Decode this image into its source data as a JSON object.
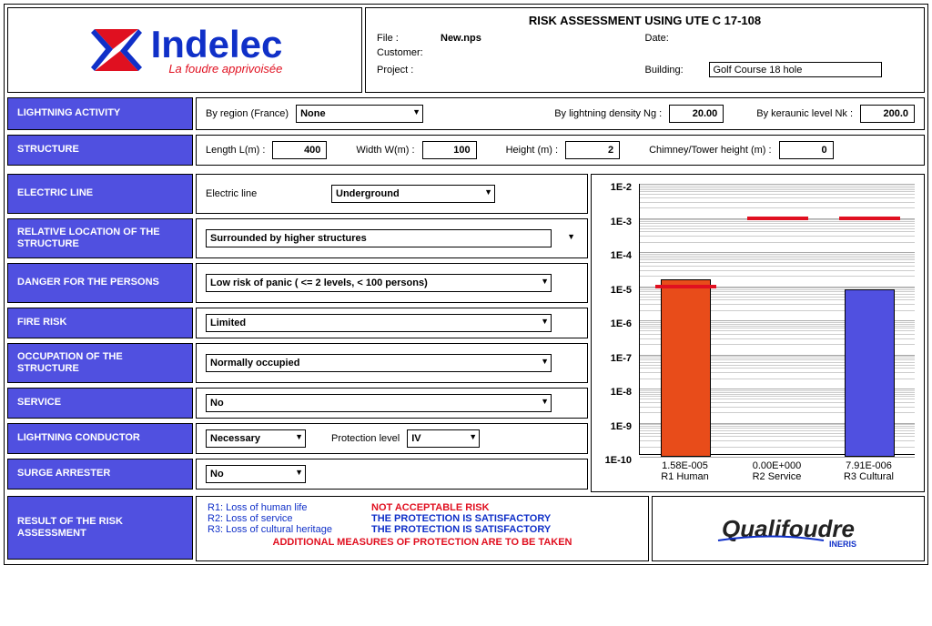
{
  "header": {
    "title": "RISK ASSESSMENT USING UTE C 17-108",
    "file_label": "File :",
    "file_value": "New.nps",
    "customer_label": "Customer:",
    "customer_value": "",
    "project_label": "Project :",
    "project_value": "",
    "date_label": "Date:",
    "date_value": "",
    "building_label": "Building:",
    "building_value": "Golf Course 18 hole"
  },
  "logo": {
    "main": "Indelec",
    "sub": "La foudre apprivoisée"
  },
  "nav": {
    "lightning_activity": "LIGHTNING ACTIVITY",
    "structure": "STRUCTURE",
    "electric_line": "ELECTRIC LINE",
    "relative_location": "RELATIVE LOCATION OF THE STRUCTURE",
    "danger_persons": "DANGER FOR THE PERSONS",
    "fire_risk": "FIRE RISK",
    "occupation": "OCCUPATION OF THE STRUCTURE",
    "service": "SERVICE",
    "lightning_conductor": "LIGHTNING CONDUCTOR",
    "surge_arrester": "SURGE ARRESTER",
    "result": "RESULT OF THE RISK ASSESSMENT"
  },
  "panels": {
    "lightning": {
      "region_label": "By region (France)",
      "region_value": "None",
      "density_label": "By lightning density Ng :",
      "density_value": "20.00",
      "keraunic_label": "By keraunic level Nk :",
      "keraunic_value": "200.0"
    },
    "structure": {
      "length_label": "Length L(m) :",
      "length_value": "400",
      "width_label": "Width W(m) :",
      "width_value": "100",
      "height_label": "Height (m) :",
      "height_value": "2",
      "chimney_label": "Chimney/Tower height (m) :",
      "chimney_value": "0"
    },
    "electric_line": {
      "label": "Electric line",
      "value": "Underground"
    },
    "relative_location": {
      "value": "Surrounded by higher structures"
    },
    "danger_persons": {
      "value": "Low risk of panic ( <= 2 levels, < 100 persons)"
    },
    "fire_risk": {
      "value": "Limited"
    },
    "occupation": {
      "value": "Normally occupied"
    },
    "service": {
      "value": "No"
    },
    "lightning_conductor": {
      "value": "Necessary",
      "protection_label": "Protection level",
      "protection_value": "IV"
    },
    "surge_arrester": {
      "value": "No"
    }
  },
  "chart": {
    "type": "bar",
    "y_scale": "log",
    "y_ticks": [
      "1E-2",
      "1E-3",
      "1E-4",
      "1E-5",
      "1E-6",
      "1E-7",
      "1E-8",
      "1E-9",
      "1E-10"
    ],
    "ylim_low_exp": -10,
    "ylim_high_exp": -2,
    "background_color": "#ffffff",
    "grid_color": "#bbbbbb",
    "minor_grid_color": "#dddddd",
    "bars": [
      {
        "label_value": "1.58E-005",
        "label_name": "R1 Human",
        "value_exp": -4.8,
        "threshold_exp": -5,
        "color": "#e84c1a"
      },
      {
        "label_value": "0.00E+000",
        "label_name": "R2 Service",
        "value_exp": null,
        "threshold_exp": -3,
        "color": "#5050e0"
      },
      {
        "label_value": "7.91E-006",
        "label_name": "R3 Cultural",
        "value_exp": -5.1,
        "threshold_exp": -3,
        "color": "#5050e0"
      }
    ],
    "threshold_color": "#e01020"
  },
  "result": {
    "r1_key": "R1: Loss of human life",
    "r1_val": "NOT ACCEPTABLE RISK",
    "r2_key": "R2: Loss of service",
    "r2_val": "THE PROTECTION IS SATISFACTORY",
    "r3_key": "R3: Loss of cultural heritage",
    "r3_val": "THE PROTECTION IS SATISFACTORY",
    "footer": "ADDITIONAL MEASURES OF PROTECTION ARE TO BE TAKEN"
  },
  "qualifoudre": {
    "text": "Qualifoudre",
    "sub": "INERIS"
  }
}
